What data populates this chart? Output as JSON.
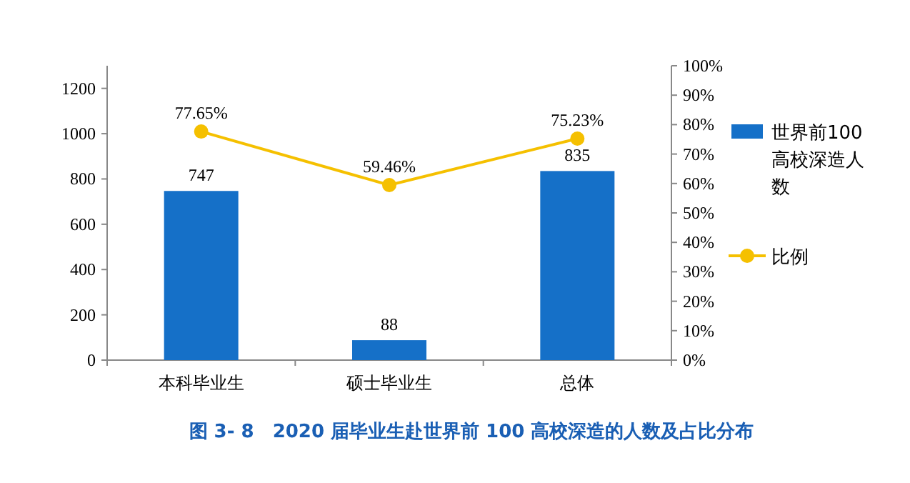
{
  "chart_data": {
    "type": "bar",
    "title": "图 3- 8　2020 届毕业生赴世界前 100 高校深造的人数及占比分布",
    "categories": [
      "本科毕业生",
      "硕士毕业生",
      "总体"
    ],
    "series": [
      {
        "name": "世界前100高校深造人数",
        "color": "#1570c8",
        "values": [
          747,
          88,
          835
        ],
        "value_labels": [
          "747",
          "88",
          "835"
        ]
      },
      {
        "name": "比例",
        "type": "line",
        "axis": "y2",
        "color": "#f5c000",
        "marker": "circle",
        "values": [
          77.65,
          59.46,
          75.23
        ],
        "value_labels": [
          "77.65%",
          "59.46%",
          "75.23%"
        ]
      }
    ],
    "ylim": [
      0,
      1300
    ],
    "yticks": [
      0,
      200,
      400,
      600,
      800,
      1000,
      1200
    ],
    "y2lim": [
      0,
      100
    ],
    "y2ticks": [
      {
        "value": 0,
        "label": "0%"
      },
      {
        "value": 10,
        "label": "10%"
      },
      {
        "value": 20,
        "label": "20%"
      },
      {
        "value": 30,
        "label": "30%"
      },
      {
        "value": 40,
        "label": "40%"
      },
      {
        "value": 50,
        "label": "50%"
      },
      {
        "value": 60,
        "label": "60%"
      },
      {
        "value": 70,
        "label": "70%"
      },
      {
        "value": 80,
        "label": "80%"
      },
      {
        "value": 90,
        "label": "90%"
      },
      {
        "value": 100,
        "label": "100%"
      }
    ],
    "legend": "right",
    "grid": false
  }
}
